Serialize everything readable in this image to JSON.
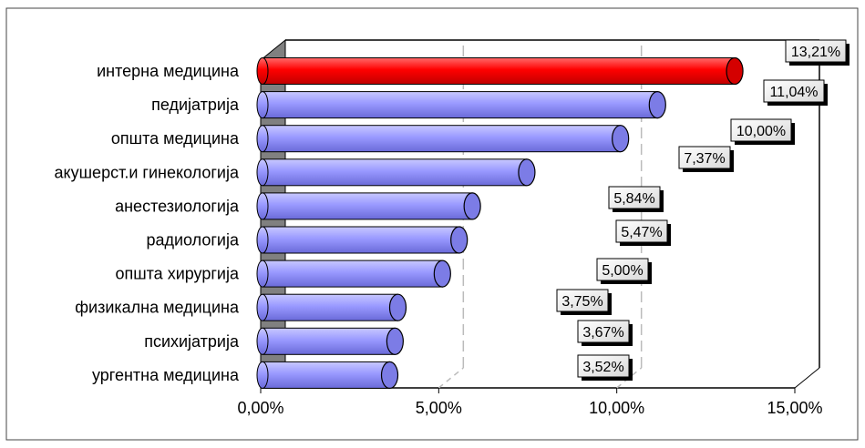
{
  "chart_data": {
    "type": "bar",
    "orientation": "horizontal",
    "categories": [
      "интерна медицина",
      "педијатрија",
      "општа медицина",
      "акушерст.и гинекологија",
      "анестезиологија",
      "радиологија",
      "општа хирургија",
      "физикална медицина",
      "психијатрија",
      "ургентна медицина"
    ],
    "values": [
      13.21,
      11.04,
      10.0,
      7.37,
      5.84,
      5.47,
      5.0,
      3.75,
      3.67,
      3.52
    ],
    "data_labels": [
      "13,21%",
      "11,04%",
      "10,00%",
      "7,37%",
      "5,84%",
      "5,47%",
      "5,00%",
      "3,75%",
      "3,67%",
      "3,52%"
    ],
    "x_ticks": [
      "0,00%",
      "5,00%",
      "10,00%",
      "15,00%"
    ],
    "xlim": [
      0,
      15
    ],
    "grid": "vertical dashed",
    "colors": {
      "highlight": "#ff0000",
      "bar": "#9999ff",
      "bar_edge": "#000000",
      "wall": "#808080"
    },
    "highlight_index": 0
  }
}
